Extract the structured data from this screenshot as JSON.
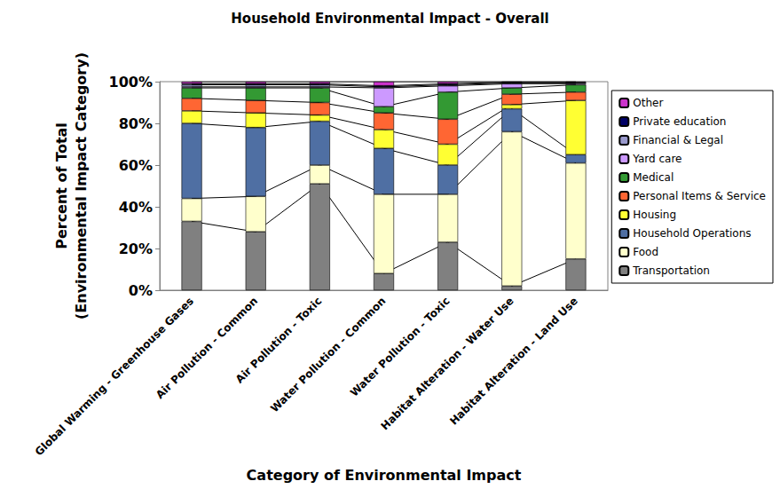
{
  "chart_data": {
    "type": "bar",
    "title": "Household Environmental Impact - Overall",
    "x_label": "Category of Environmental Impact",
    "y_label": "Percent of Total\n(Environmental Impact Category)",
    "categories": [
      "Global Warming - Greenhouse Gases",
      "Air Pollution - Common",
      "Air Pollution - Toxic",
      "Water Pollution - Common",
      "Water Pollution - Toxic",
      "Habitat Alteration - Water Use",
      "Habitat Alteration - Land Use"
    ],
    "stacked": true,
    "grid": false,
    "legend": "right",
    "ylim": [
      0,
      100
    ],
    "yticks": [
      {
        "value": 0,
        "label": "0%"
      },
      {
        "value": 20,
        "label": "20%"
      },
      {
        "value": 40,
        "label": "40%"
      },
      {
        "value": 60,
        "label": "60%"
      },
      {
        "value": 80,
        "label": "80%"
      },
      {
        "value": 100,
        "label": "100%"
      }
    ],
    "series": [
      {
        "name": "Transportation",
        "color": "#808080",
        "values": [
          33,
          28,
          51,
          8,
          23,
          2,
          15
        ]
      },
      {
        "name": "Food",
        "color": "#ffffcc",
        "values": [
          11,
          17,
          9,
          38,
          23,
          74,
          46
        ]
      },
      {
        "name": "Household Operations",
        "color": "#4f6fa3",
        "values": [
          36,
          33,
          21,
          22,
          14,
          11,
          4
        ]
      },
      {
        "name": "Housing",
        "color": "#ffff33",
        "values": [
          6,
          7,
          3,
          9,
          10,
          2,
          26
        ]
      },
      {
        "name": "Personal Items & Service",
        "color": "#ff6633",
        "values": [
          6,
          6,
          6,
          8,
          12,
          5,
          4
        ]
      },
      {
        "name": "Medical",
        "color": "#339933",
        "values": [
          5,
          6,
          7,
          3,
          13,
          3,
          3.5
        ]
      },
      {
        "name": "Yard care",
        "color": "#cc99ff",
        "values": [
          0.5,
          0.5,
          0.5,
          9,
          3,
          2,
          0.5
        ]
      },
      {
        "name": "Financial & Legal",
        "color": "#9999cc",
        "values": [
          1,
          1,
          1,
          0.5,
          0.5,
          0.5,
          0.5
        ]
      },
      {
        "name": "Private education",
        "color": "#000066",
        "values": [
          0.5,
          0.5,
          0.5,
          0.5,
          0.5,
          0.2,
          0.2
        ]
      },
      {
        "name": "Other",
        "color": "#cc33cc",
        "values": [
          1,
          1,
          1,
          2,
          1,
          0.3,
          0.3
        ]
      }
    ]
  }
}
